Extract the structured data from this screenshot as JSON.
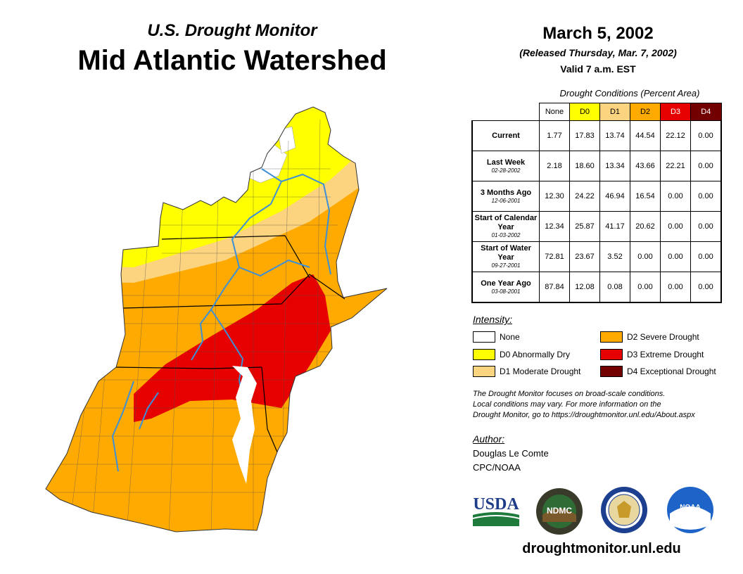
{
  "header": {
    "subtitle": "U.S. Drought Monitor",
    "title": "Mid Atlantic Watershed",
    "date": "March 5, 2002",
    "released": "(Released Thursday, Mar. 7, 2002)",
    "valid": "Valid 7 a.m. EST"
  },
  "conditions": {
    "title": "Drought Conditions (Percent Area)",
    "columns": [
      "None",
      "D0",
      "D1",
      "D2",
      "D3",
      "D4"
    ],
    "column_colors": [
      "#ffffff",
      "#ffff00",
      "#fcd37f",
      "#ffaa00",
      "#e60000",
      "#730000"
    ],
    "rows": [
      {
        "label": "Current",
        "date": "",
        "values": [
          "1.77",
          "17.83",
          "13.74",
          "44.54",
          "22.12",
          "0.00"
        ]
      },
      {
        "label": "Last Week",
        "date": "02-28-2002",
        "values": [
          "2.18",
          "18.60",
          "13.34",
          "43.66",
          "22.21",
          "0.00"
        ]
      },
      {
        "label": "3 Months Ago",
        "date": "12-06-2001",
        "values": [
          "12.30",
          "24.22",
          "46.94",
          "16.54",
          "0.00",
          "0.00"
        ]
      },
      {
        "label": "Start of Calendar Year",
        "date": "01-03-2002",
        "values": [
          "12.34",
          "25.87",
          "41.17",
          "20.62",
          "0.00",
          "0.00"
        ]
      },
      {
        "label": "Start of Water Year",
        "date": "09-27-2001",
        "values": [
          "72.81",
          "23.67",
          "3.52",
          "0.00",
          "0.00",
          "0.00"
        ]
      },
      {
        "label": "One Year Ago",
        "date": "03-08-2001",
        "values": [
          "87.84",
          "12.08",
          "0.08",
          "0.00",
          "0.00",
          "0.00"
        ]
      }
    ]
  },
  "legend": {
    "title": "Intensity:",
    "items": [
      {
        "label": "None",
        "color": "#ffffff"
      },
      {
        "label": "D0 Abnormally Dry",
        "color": "#ffff00"
      },
      {
        "label": "D1 Moderate Drought",
        "color": "#fcd37f"
      },
      {
        "label": "D2 Severe Drought",
        "color": "#ffaa00"
      },
      {
        "label": "D3 Extreme Drought",
        "color": "#e60000"
      },
      {
        "label": "D4 Exceptional Drought",
        "color": "#730000"
      }
    ]
  },
  "note": {
    "line1": "The Drought Monitor focuses on broad-scale conditions.",
    "line2": "Local conditions may vary. For more information on the",
    "line3": "Drought Monitor, go to https://droughtmonitor.unl.edu/About.aspx"
  },
  "author": {
    "title": "Author:",
    "name": "Douglas Le Comte",
    "org": "CPC/NOAA"
  },
  "logos": {
    "usda": "USDA",
    "ndmc": "NDMC",
    "noaa": "NOAA"
  },
  "website": "droughtmonitor.unl.edu",
  "colors": {
    "none": "#ffffff",
    "d0": "#ffff00",
    "d1": "#fcd37f",
    "d2": "#ffaa00",
    "d3": "#e60000",
    "d4": "#730000",
    "river": "#3d8fd6",
    "usda_blue": "#1f3c88",
    "usda_green": "#1e7b3c",
    "ndmc_green": "#2f6b35",
    "doc_blue": "#1c3f8f",
    "noaa_blue": "#1e64c8"
  }
}
